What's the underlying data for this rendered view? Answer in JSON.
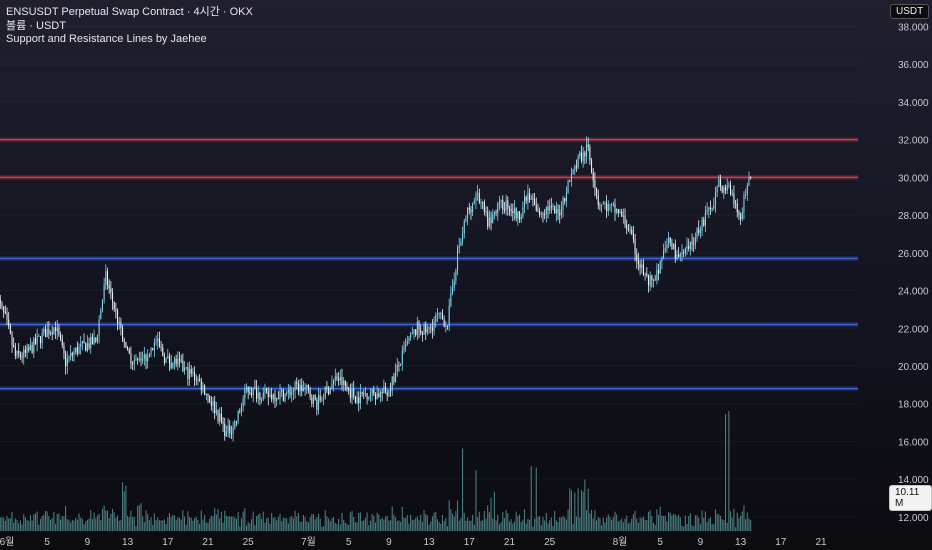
{
  "legend": {
    "line1": "ENSUSDT Perpetual Swap Contract · 4시간 · OKX",
    "line2": "볼륨 · USDT",
    "line3": "Support and Resistance Lines by Jaehee"
  },
  "currency_badge": "USDT",
  "volume_badge": "10.11 M",
  "colors": {
    "resistance": "#e0384a",
    "support": "#3f66d9",
    "candle": "#7fd7ea",
    "volume": "#5fa6a6"
  },
  "chart_data": {
    "type": "candlestick",
    "ylim": [
      11.2,
      39.4
    ],
    "yticks": [
      {
        "value": 38,
        "label": "38.000"
      },
      {
        "value": 36,
        "label": "36.000"
      },
      {
        "value": 34,
        "label": "34.000"
      },
      {
        "value": 32,
        "label": "32.000"
      },
      {
        "value": 30,
        "label": "30.000"
      },
      {
        "value": 28,
        "label": "28.000"
      },
      {
        "value": 26,
        "label": "26.000"
      },
      {
        "value": 24,
        "label": "24.000"
      },
      {
        "value": 22,
        "label": "22.000"
      },
      {
        "value": 20,
        "label": "20.000"
      },
      {
        "value": 18,
        "label": "18.000"
      },
      {
        "value": 16,
        "label": "16.000"
      },
      {
        "value": 14,
        "label": "14.000"
      },
      {
        "value": 12,
        "label": "12.000"
      }
    ],
    "xticks": [
      {
        "date": "2024-06-01",
        "label": "6월"
      },
      {
        "date": "2024-06-05",
        "label": "5"
      },
      {
        "date": "2024-06-09",
        "label": "9"
      },
      {
        "date": "2024-06-13",
        "label": "13"
      },
      {
        "date": "2024-06-17",
        "label": "17"
      },
      {
        "date": "2024-06-21",
        "label": "21"
      },
      {
        "date": "2024-06-25",
        "label": "25"
      },
      {
        "date": "2024-07-01",
        "label": "7월"
      },
      {
        "date": "2024-07-05",
        "label": "5"
      },
      {
        "date": "2024-07-09",
        "label": "9"
      },
      {
        "date": "2024-07-13",
        "label": "13"
      },
      {
        "date": "2024-07-17",
        "label": "17"
      },
      {
        "date": "2024-07-21",
        "label": "21"
      },
      {
        "date": "2024-07-25",
        "label": "25"
      },
      {
        "date": "2024-08-01",
        "label": "8월"
      },
      {
        "date": "2024-08-05",
        "label": "5"
      },
      {
        "date": "2024-08-09",
        "label": "9"
      },
      {
        "date": "2024-08-13",
        "label": "13"
      },
      {
        "date": "2024-08-17",
        "label": "17"
      },
      {
        "date": "2024-08-21",
        "label": "21"
      }
    ],
    "levels": [
      {
        "type": "resistance",
        "value": 32.0
      },
      {
        "type": "resistance",
        "value": 30.0
      },
      {
        "type": "support",
        "value": 25.7
      },
      {
        "type": "support",
        "value": 22.2
      },
      {
        "type": "support",
        "value": 18.8
      }
    ],
    "price_path": [
      [
        "2024-05-31",
        23.8
      ],
      [
        "2024-06-01",
        22.5
      ],
      [
        "2024-06-02",
        20.5
      ],
      [
        "2024-06-03",
        20.6
      ],
      [
        "2024-06-04",
        21.2
      ],
      [
        "2024-06-05",
        21.8
      ],
      [
        "2024-06-06",
        22.1
      ],
      [
        "2024-06-07",
        20.2
      ],
      [
        "2024-06-08",
        20.8
      ],
      [
        "2024-06-09",
        21.1
      ],
      [
        "2024-06-10",
        21.3
      ],
      [
        "2024-06-11",
        24.7
      ],
      [
        "2024-06-12",
        22.8
      ],
      [
        "2024-06-13",
        20.7
      ],
      [
        "2024-06-14",
        20.2
      ],
      [
        "2024-06-15",
        20.5
      ],
      [
        "2024-06-16",
        21.3
      ],
      [
        "2024-06-17",
        20.3
      ],
      [
        "2024-06-18",
        20.2
      ],
      [
        "2024-06-19",
        19.7
      ],
      [
        "2024-06-20",
        19.4
      ],
      [
        "2024-06-21",
        18.6
      ],
      [
        "2024-06-22",
        17.6
      ],
      [
        "2024-06-23",
        16.4
      ],
      [
        "2024-06-24",
        17.1
      ],
      [
        "2024-06-25",
        18.8
      ],
      [
        "2024-06-26",
        18.6
      ],
      [
        "2024-06-27",
        18.4
      ],
      [
        "2024-06-28",
        18.5
      ],
      [
        "2024-06-29",
        18.5
      ],
      [
        "2024-06-30",
        18.9
      ],
      [
        "2024-07-01",
        18.7
      ],
      [
        "2024-07-02",
        18.0
      ],
      [
        "2024-07-03",
        18.7
      ],
      [
        "2024-07-04",
        19.4
      ],
      [
        "2024-07-05",
        18.8
      ],
      [
        "2024-07-06",
        18.3
      ],
      [
        "2024-07-07",
        18.6
      ],
      [
        "2024-07-08",
        18.5
      ],
      [
        "2024-07-09",
        18.6
      ],
      [
        "2024-07-10",
        19.8
      ],
      [
        "2024-07-11",
        21.2
      ],
      [
        "2024-07-12",
        22.0
      ],
      [
        "2024-07-13",
        21.8
      ],
      [
        "2024-07-14",
        22.6
      ],
      [
        "2024-07-15",
        22.3
      ],
      [
        "2024-07-16",
        26.0
      ],
      [
        "2024-07-17",
        28.2
      ],
      [
        "2024-07-18",
        29.1
      ],
      [
        "2024-07-19",
        27.6
      ],
      [
        "2024-07-20",
        28.4
      ],
      [
        "2024-07-21",
        28.6
      ],
      [
        "2024-07-22",
        27.9
      ],
      [
        "2024-07-23",
        29.0
      ],
      [
        "2024-07-24",
        28.1
      ],
      [
        "2024-07-25",
        28.4
      ],
      [
        "2024-07-26",
        28.0
      ],
      [
        "2024-07-27",
        29.6
      ],
      [
        "2024-07-28",
        31.0
      ],
      [
        "2024-07-29",
        31.5
      ],
      [
        "2024-07-30",
        28.7
      ],
      [
        "2024-07-31",
        28.4
      ],
      [
        "2024-08-01",
        28.2
      ],
      [
        "2024-08-02",
        27.3
      ],
      [
        "2024-08-03",
        25.5
      ],
      [
        "2024-08-04",
        24.4
      ],
      [
        "2024-08-05",
        25.0
      ],
      [
        "2024-08-06",
        26.7
      ],
      [
        "2024-08-07",
        25.7
      ],
      [
        "2024-08-08",
        26.1
      ],
      [
        "2024-08-09",
        27.3
      ],
      [
        "2024-08-10",
        28.2
      ],
      [
        "2024-08-11",
        29.6
      ],
      [
        "2024-08-12",
        29.4
      ],
      [
        "2024-08-13",
        27.8
      ],
      [
        "2024-08-14",
        29.7
      ]
    ],
    "volume_spikes": [
      [
        "2024-06-12",
        4.2
      ],
      [
        "2024-06-14",
        2.4
      ],
      [
        "2024-07-16",
        9.0
      ],
      [
        "2024-07-17",
        5.3
      ],
      [
        "2024-07-19",
        3.8
      ],
      [
        "2024-07-23",
        7.0
      ],
      [
        "2024-07-27",
        4.4
      ],
      [
        "2024-07-28",
        4.5
      ],
      [
        "2024-08-04",
        3.9
      ],
      [
        "2024-08-11",
        10.3
      ],
      [
        "2024-08-14",
        2.9
      ]
    ],
    "xlabel": "",
    "ylabel": ""
  }
}
